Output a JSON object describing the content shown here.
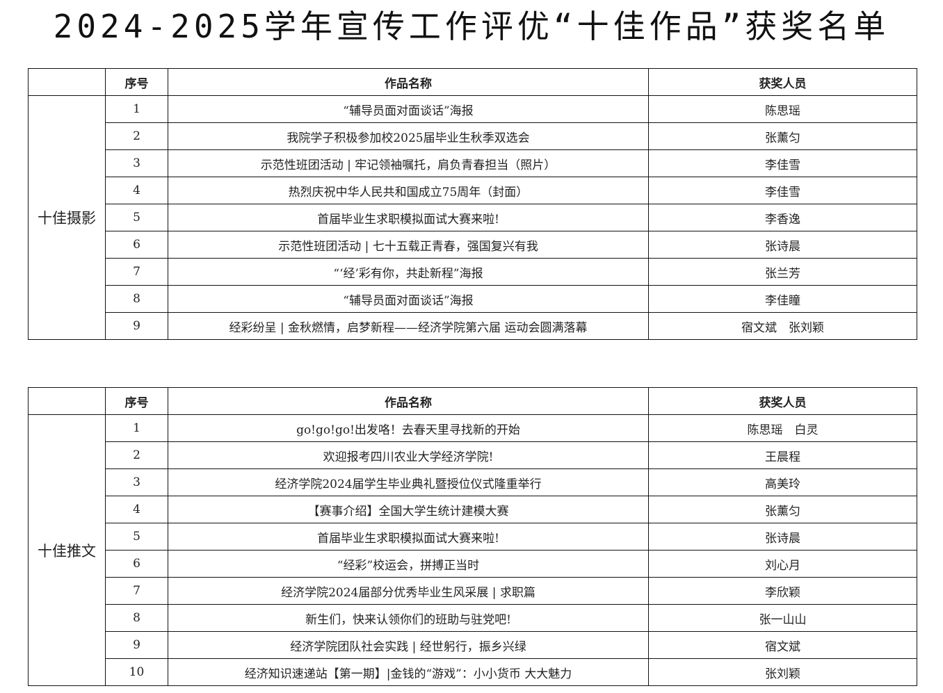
{
  "title": "2024-2025学年宣传工作评优“十佳作品”获奖名单",
  "headers": {
    "index": "序号",
    "work": "作品名称",
    "winners": "获奖人员"
  },
  "photography": {
    "category": "十佳摄影",
    "rows": [
      {
        "no": "1",
        "work": "“辅导员面对面谈话”海报",
        "winners": "陈思瑶"
      },
      {
        "no": "2",
        "work": "我院学子积极参加校2025届毕业生秋季双选会",
        "winners": "张薰匀"
      },
      {
        "no": "3",
        "work": "示范性班团活动 | 牢记领袖嘱托，肩负青春担当（照片）",
        "winners": "李佳雪"
      },
      {
        "no": "4",
        "work": "热烈庆祝中华人民共和国成立75周年（封面）",
        "winners": "李佳雪"
      },
      {
        "no": "5",
        "work": "首届毕业生求职模拟面试大赛来啦!",
        "winners": "李香逸"
      },
      {
        "no": "6",
        "work": "示范性班团活动 | 七十五载正青春，强国复兴有我",
        "winners": "张诗晨"
      },
      {
        "no": "7",
        "work": "“‘经’彩有你，共赴新程”海报",
        "winners": "张兰芳"
      },
      {
        "no": "8",
        "work": "“辅导员面对面谈话”海报",
        "winners": "李佳瞳"
      },
      {
        "no": "9",
        "work": "经彩纷呈 | 金秋燃情，启梦新程——经济学院第六届 运动会圆满落幕",
        "winners": "宿文斌　张刘颖"
      }
    ]
  },
  "articles": {
    "category": "十佳推文",
    "rows": [
      {
        "no": "1",
        "work": "go!go!go!出发咯！去春天里寻找新的开始",
        "winners": "陈思瑶　白灵"
      },
      {
        "no": "2",
        "work": "欢迎报考四川农业大学经济学院!",
        "winners": "王晨程"
      },
      {
        "no": "3",
        "work": "经济学院2024届学生毕业典礼暨授位仪式隆重举行",
        "winners": "高美玲"
      },
      {
        "no": "4",
        "work": "【赛事介绍】全国大学生统计建模大赛",
        "winners": "张薰匀"
      },
      {
        "no": "5",
        "work": "首届毕业生求职模拟面试大赛来啦!",
        "winners": "张诗晨"
      },
      {
        "no": "6",
        "work": "“经彩”校运会，拼搏正当时",
        "winners": "刘心月"
      },
      {
        "no": "7",
        "work": "经济学院2024届部分优秀毕业生风采展 | 求职篇",
        "winners": "李欣颖"
      },
      {
        "no": "8",
        "work": "新生们，快来认领你们的班助与驻党吧!",
        "winners": "张一山山"
      },
      {
        "no": "9",
        "work": "经济学院团队社会实践 | 经世躬行，振乡兴绿",
        "winners": "宿文斌"
      },
      {
        "no": "10",
        "work": "经济知识速递站【第一期】|金钱的“游戏”：小小货币 大大魅力",
        "winners": "张刘颖"
      }
    ]
  }
}
